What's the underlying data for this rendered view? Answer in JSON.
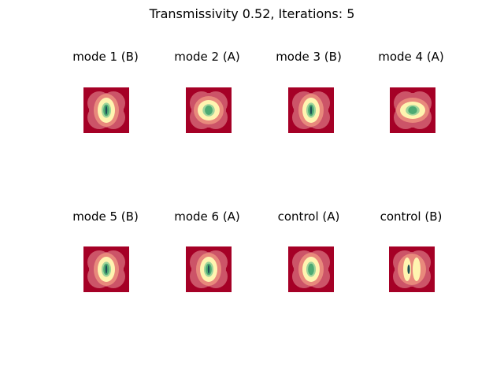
{
  "figure": {
    "title": "Transmissivity 0.52, Iterations: 5"
  },
  "panels": [
    {
      "title": "mode 1 (B)",
      "shape": "tall",
      "core": "dark"
    },
    {
      "title": "mode 2 (A)",
      "shape": "round",
      "core": "light"
    },
    {
      "title": "mode 3 (B)",
      "shape": "tall",
      "core": "dark"
    },
    {
      "title": "mode 4 (A)",
      "shape": "wide",
      "core": "light"
    },
    {
      "title": "mode 5 (B)",
      "shape": "tall",
      "core": "dark"
    },
    {
      "title": "mode 6 (A)",
      "shape": "tall",
      "core": "dark"
    },
    {
      "title": "control (A)",
      "shape": "tall",
      "core": "light"
    },
    {
      "title": "control (B)",
      "shape": "split",
      "core": "dark"
    }
  ],
  "colors": {
    "background": "#a50026",
    "outer": "#cc5468",
    "mid": "#e8897c",
    "yellow": "#fff4b0",
    "green_light": "#9fd39a",
    "green": "#4daa73",
    "dark": "#1a4f55"
  }
}
